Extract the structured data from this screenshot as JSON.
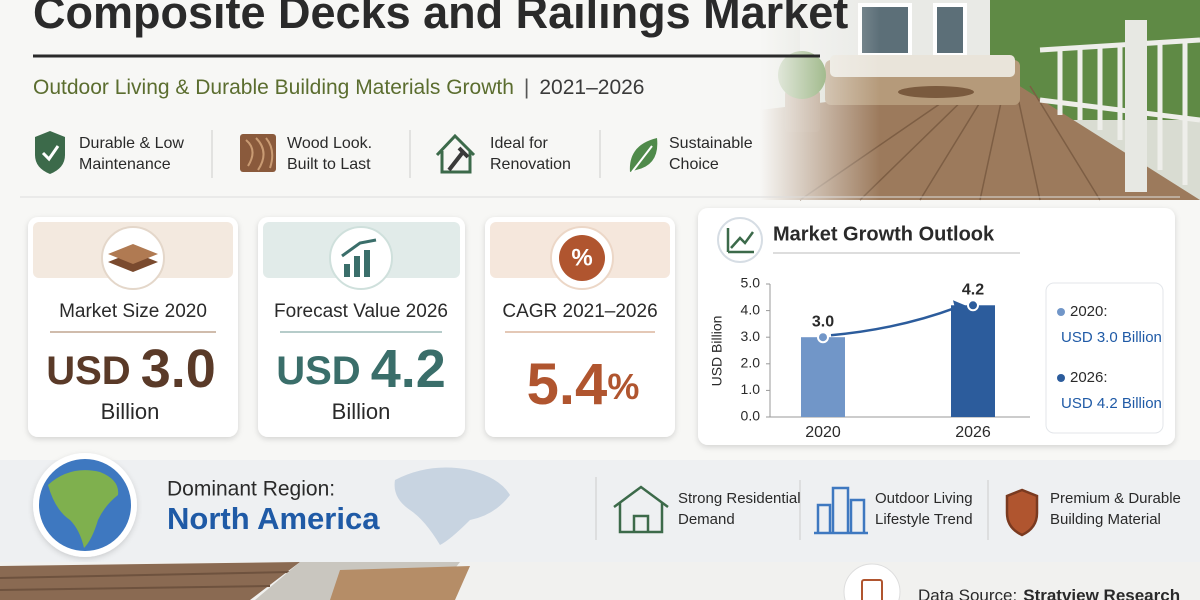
{
  "header": {
    "title": "Composite Decks and Railings Market",
    "subtitle": "Outdoor Living & Durable Building Materials Growth",
    "period": "2021–2026"
  },
  "features": [
    {
      "lines": [
        "Durable & Low",
        "Maintenance"
      ]
    },
    {
      "lines": [
        "Wood Look.",
        "Built to Last"
      ]
    },
    {
      "lines": [
        "Ideal for",
        "Renovation"
      ]
    },
    {
      "lines": [
        "Sustainable",
        "Choice"
      ]
    }
  ],
  "stats": [
    {
      "label": "Market Size 2020",
      "prefix": "USD",
      "value": "3.0",
      "unit": "Billion"
    },
    {
      "label": "Forecast Value 2026",
      "prefix": "USD",
      "value": "4.2",
      "unit": "Billion"
    },
    {
      "label": "CAGR 2021–2026",
      "value": "5.4",
      "suffix": "%"
    }
  ],
  "chart_data": {
    "type": "bar",
    "title": "Market Growth Outlook",
    "y_label": "USD Billion",
    "categories": [
      "2020",
      "2026"
    ],
    "values": [
      3.0,
      4.2
    ],
    "value_labels": [
      "3.0",
      "4.2"
    ],
    "colors": [
      "#7196c8",
      "#2c5c9c"
    ],
    "ylim": [
      0,
      5
    ],
    "yticks": [
      {
        "value": 0,
        "label": "0.0"
      },
      {
        "value": 1,
        "label": "1.0"
      },
      {
        "value": 2,
        "label": "2.0"
      },
      {
        "value": 3,
        "label": "3.0"
      },
      {
        "value": 4,
        "label": "4.0"
      },
      {
        "value": 5,
        "label": "5.0"
      }
    ],
    "legend": [
      {
        "year": "2020:",
        "text": "USD 3.0 Billion"
      },
      {
        "year": "2026:",
        "text": "USD 4.2 Billion"
      }
    ]
  },
  "region": {
    "label": "Dominant Region:",
    "name": "North America"
  },
  "trends": [
    {
      "lines": [
        "Strong Residential",
        "Demand"
      ]
    },
    {
      "lines": [
        "Outdoor Living",
        "Lifestyle Trend"
      ]
    },
    {
      "lines": [
        "Premium & Durable",
        "Building Material"
      ]
    }
  ],
  "footer": {
    "label": "Data Source:",
    "source": "Stratview Research"
  }
}
